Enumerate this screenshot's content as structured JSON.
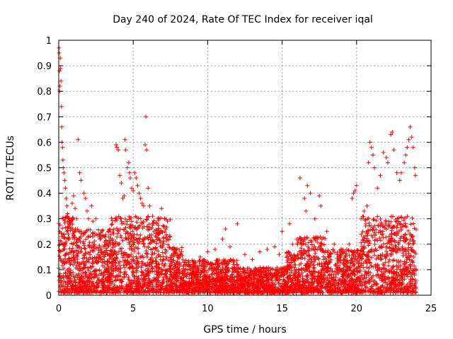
{
  "chart_data": {
    "type": "scatter",
    "title": "Day 240 of 2024, Rate Of TEC Index for receiver iqal",
    "xlabel": "GPS time / hours",
    "ylabel": "ROTI / TECUs",
    "xlim": [
      0,
      25
    ],
    "ylim": [
      0,
      1
    ],
    "xticks": [
      0,
      5,
      10,
      15,
      20,
      25
    ],
    "yticks": [
      0,
      0.1,
      0.2,
      0.3,
      0.4,
      0.5,
      0.6,
      0.7,
      0.8,
      0.9,
      1
    ],
    "grid": true,
    "marker": "+",
    "color": "#ff0000",
    "series": [
      {
        "points": [
          [
            0.02,
            0.97
          ],
          [
            0.03,
            0.95
          ],
          [
            0.05,
            0.88
          ],
          [
            0.06,
            0.8
          ],
          [
            0.08,
            0.82
          ],
          [
            0.1,
            0.93
          ],
          [
            0.12,
            0.89
          ],
          [
            0.15,
            0.84
          ],
          [
            0.18,
            0.74
          ],
          [
            0.2,
            0.66
          ],
          [
            0.22,
            0.6
          ],
          [
            0.25,
            0.58
          ],
          [
            0.28,
            0.53
          ],
          [
            0.3,
            0.5
          ],
          [
            0.35,
            0.48
          ],
          [
            0.4,
            0.45
          ],
          [
            0.45,
            0.42
          ],
          [
            0.5,
            0.38
          ],
          [
            0.55,
            0.35
          ],
          [
            0.6,
            0.32
          ],
          [
            0.7,
            0.3
          ],
          [
            0.8,
            0.28
          ],
          [
            0.9,
            0.36
          ],
          [
            1.0,
            0.39
          ],
          [
            1.1,
            0.34
          ],
          [
            1.2,
            0.3
          ],
          [
            1.3,
            0.61
          ],
          [
            1.4,
            0.48
          ],
          [
            1.5,
            0.45
          ],
          [
            1.7,
            0.4
          ],
          [
            1.8,
            0.38
          ],
          [
            1.9,
            0.33
          ],
          [
            2.0,
            0.3
          ],
          [
            2.2,
            0.35
          ],
          [
            2.3,
            0.29
          ],
          [
            2.5,
            0.3
          ],
          [
            2.7,
            0.24
          ],
          [
            3.0,
            0.19
          ],
          [
            3.3,
            0.16
          ],
          [
            3.6,
            0.22
          ],
          [
            3.8,
            0.3
          ],
          [
            3.85,
            0.59
          ],
          [
            3.9,
            0.58
          ],
          [
            4.0,
            0.57
          ],
          [
            4.1,
            0.47
          ],
          [
            4.2,
            0.44
          ],
          [
            4.3,
            0.38
          ],
          [
            4.4,
            0.39
          ],
          [
            4.45,
            0.61
          ],
          [
            4.5,
            0.57
          ],
          [
            4.6,
            0.5
          ],
          [
            4.7,
            0.52
          ],
          [
            4.75,
            0.48
          ],
          [
            4.8,
            0.46
          ],
          [
            4.9,
            0.42
          ],
          [
            5.0,
            0.41
          ],
          [
            5.1,
            0.48
          ],
          [
            5.2,
            0.46
          ],
          [
            5.3,
            0.43
          ],
          [
            5.4,
            0.4
          ],
          [
            5.5,
            0.38
          ],
          [
            5.6,
            0.36
          ],
          [
            5.7,
            0.35
          ],
          [
            5.8,
            0.59
          ],
          [
            5.85,
            0.7
          ],
          [
            5.9,
            0.57
          ],
          [
            6.0,
            0.42
          ],
          [
            6.1,
            0.35
          ],
          [
            6.3,
            0.31
          ],
          [
            6.6,
            0.28
          ],
          [
            6.9,
            0.34
          ],
          [
            7.1,
            0.3
          ],
          [
            7.3,
            0.22
          ],
          [
            7.6,
            0.18
          ],
          [
            8.0,
            0.12
          ],
          [
            8.5,
            0.1
          ],
          [
            9.0,
            0.13
          ],
          [
            9.5,
            0.15
          ],
          [
            10.0,
            0.17
          ],
          [
            10.5,
            0.18
          ],
          [
            11.0,
            0.22
          ],
          [
            11.2,
            0.26
          ],
          [
            11.5,
            0.19
          ],
          [
            12.0,
            0.28
          ],
          [
            12.5,
            0.16
          ],
          [
            13.0,
            0.14
          ],
          [
            13.5,
            0.17
          ],
          [
            14.0,
            0.18
          ],
          [
            14.5,
            0.19
          ],
          [
            14.8,
            0.16
          ],
          [
            15.0,
            0.25
          ],
          [
            15.5,
            0.28
          ],
          [
            15.7,
            0.2
          ],
          [
            16.0,
            0.22
          ],
          [
            16.2,
            0.46
          ],
          [
            16.5,
            0.38
          ],
          [
            16.6,
            0.33
          ],
          [
            16.7,
            0.43
          ],
          [
            16.9,
            0.4
          ],
          [
            17.2,
            0.3
          ],
          [
            17.5,
            0.39
          ],
          [
            17.6,
            0.35
          ],
          [
            18.0,
            0.25
          ],
          [
            18.5,
            0.2
          ],
          [
            19.0,
            0.18
          ],
          [
            19.5,
            0.2
          ],
          [
            19.7,
            0.38
          ],
          [
            19.8,
            0.4
          ],
          [
            19.9,
            0.41
          ],
          [
            20.0,
            0.43
          ],
          [
            20.3,
            0.3
          ],
          [
            20.5,
            0.33
          ],
          [
            20.7,
            0.35
          ],
          [
            20.8,
            0.52
          ],
          [
            20.9,
            0.6
          ],
          [
            21.0,
            0.58
          ],
          [
            21.1,
            0.55
          ],
          [
            21.2,
            0.5
          ],
          [
            21.4,
            0.42
          ],
          [
            21.6,
            0.47
          ],
          [
            21.8,
            0.56
          ],
          [
            22.0,
            0.54
          ],
          [
            22.1,
            0.52
          ],
          [
            22.3,
            0.63
          ],
          [
            22.4,
            0.64
          ],
          [
            22.5,
            0.57
          ],
          [
            22.7,
            0.48
          ],
          [
            22.9,
            0.45
          ],
          [
            23.0,
            0.48
          ],
          [
            23.2,
            0.52
          ],
          [
            23.3,
            0.55
          ],
          [
            23.4,
            0.58
          ],
          [
            23.5,
            0.61
          ],
          [
            23.6,
            0.66
          ],
          [
            23.7,
            0.62
          ],
          [
            23.8,
            0.58
          ],
          [
            23.9,
            0.5
          ],
          [
            23.95,
            0.47
          ]
        ]
      }
    ]
  }
}
